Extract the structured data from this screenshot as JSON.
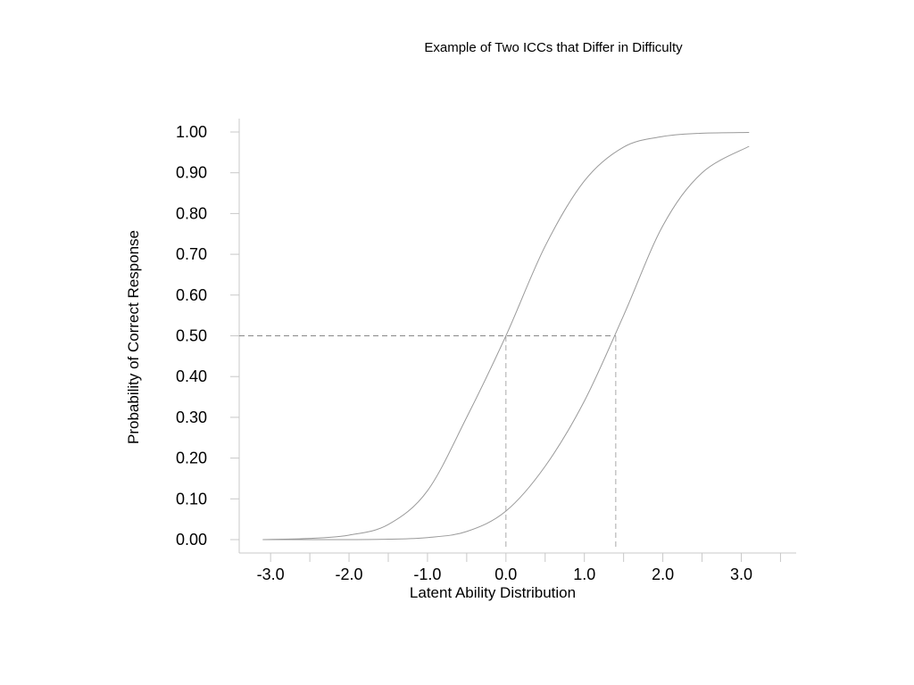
{
  "chart_data": {
    "type": "line",
    "title": "Example of Two ICCs that Differ in Difficulty",
    "xlabel": "Latent Ability Distribution",
    "ylabel": "Probability of Correct Response",
    "xlim": [
      -3.4,
      3.7
    ],
    "ylim": [
      0,
      1
    ],
    "x_ticks": [
      -3.0,
      -2.0,
      -1.0,
      0.0,
      1.0,
      2.0,
      3.0
    ],
    "x_tick_labels": [
      "-3.0",
      "-2.0",
      "-1.0",
      "0.0",
      "1.0",
      "2.0",
      "3.0"
    ],
    "y_ticks": [
      0,
      0.1,
      0.2,
      0.3,
      0.4,
      0.5,
      0.6,
      0.7,
      0.8,
      0.9,
      1.0
    ],
    "y_tick_labels": [
      "0.00",
      "0.10",
      "0.20",
      "0.30",
      "0.40",
      "0.50",
      "0.60",
      "0.70",
      "0.80",
      "0.90",
      "1.00"
    ],
    "grid": false,
    "legend": "none",
    "series": [
      {
        "color": "#999999",
        "x": [
          -3.1,
          -2.5,
          -2.0,
          -1.5,
          -1.0,
          -0.5,
          0.0,
          0.5,
          1.0,
          1.5,
          2.0,
          2.5,
          3.1
        ],
        "y": [
          0.0,
          0.003,
          0.011,
          0.037,
          0.12,
          0.3,
          0.5,
          0.72,
          0.88,
          0.963,
          0.989,
          0.997,
          0.999
        ]
      },
      {
        "color": "#999999",
        "x": [
          -3.1,
          -2.5,
          -2.0,
          -1.5,
          -1.0,
          -0.5,
          0.0,
          0.5,
          1.0,
          1.5,
          2.0,
          2.5,
          3.1
        ],
        "y": [
          0.0,
          0.0,
          0.0,
          0.001,
          0.005,
          0.02,
          0.07,
          0.18,
          0.34,
          0.55,
          0.77,
          0.9,
          0.965
        ]
      }
    ],
    "reference_lines": [
      {
        "orientation": "horizontal",
        "y": 0.5,
        "x_from": -3.4,
        "x_to": 1.4,
        "color": "#888888"
      },
      {
        "orientation": "vertical",
        "x": 0.0,
        "y_from": 0.0,
        "y_to": 0.5,
        "color": "#aaaaaa"
      },
      {
        "orientation": "vertical",
        "x": 1.4,
        "y_from": 0.0,
        "y_to": 0.5,
        "color": "#aaaaaa"
      }
    ]
  }
}
